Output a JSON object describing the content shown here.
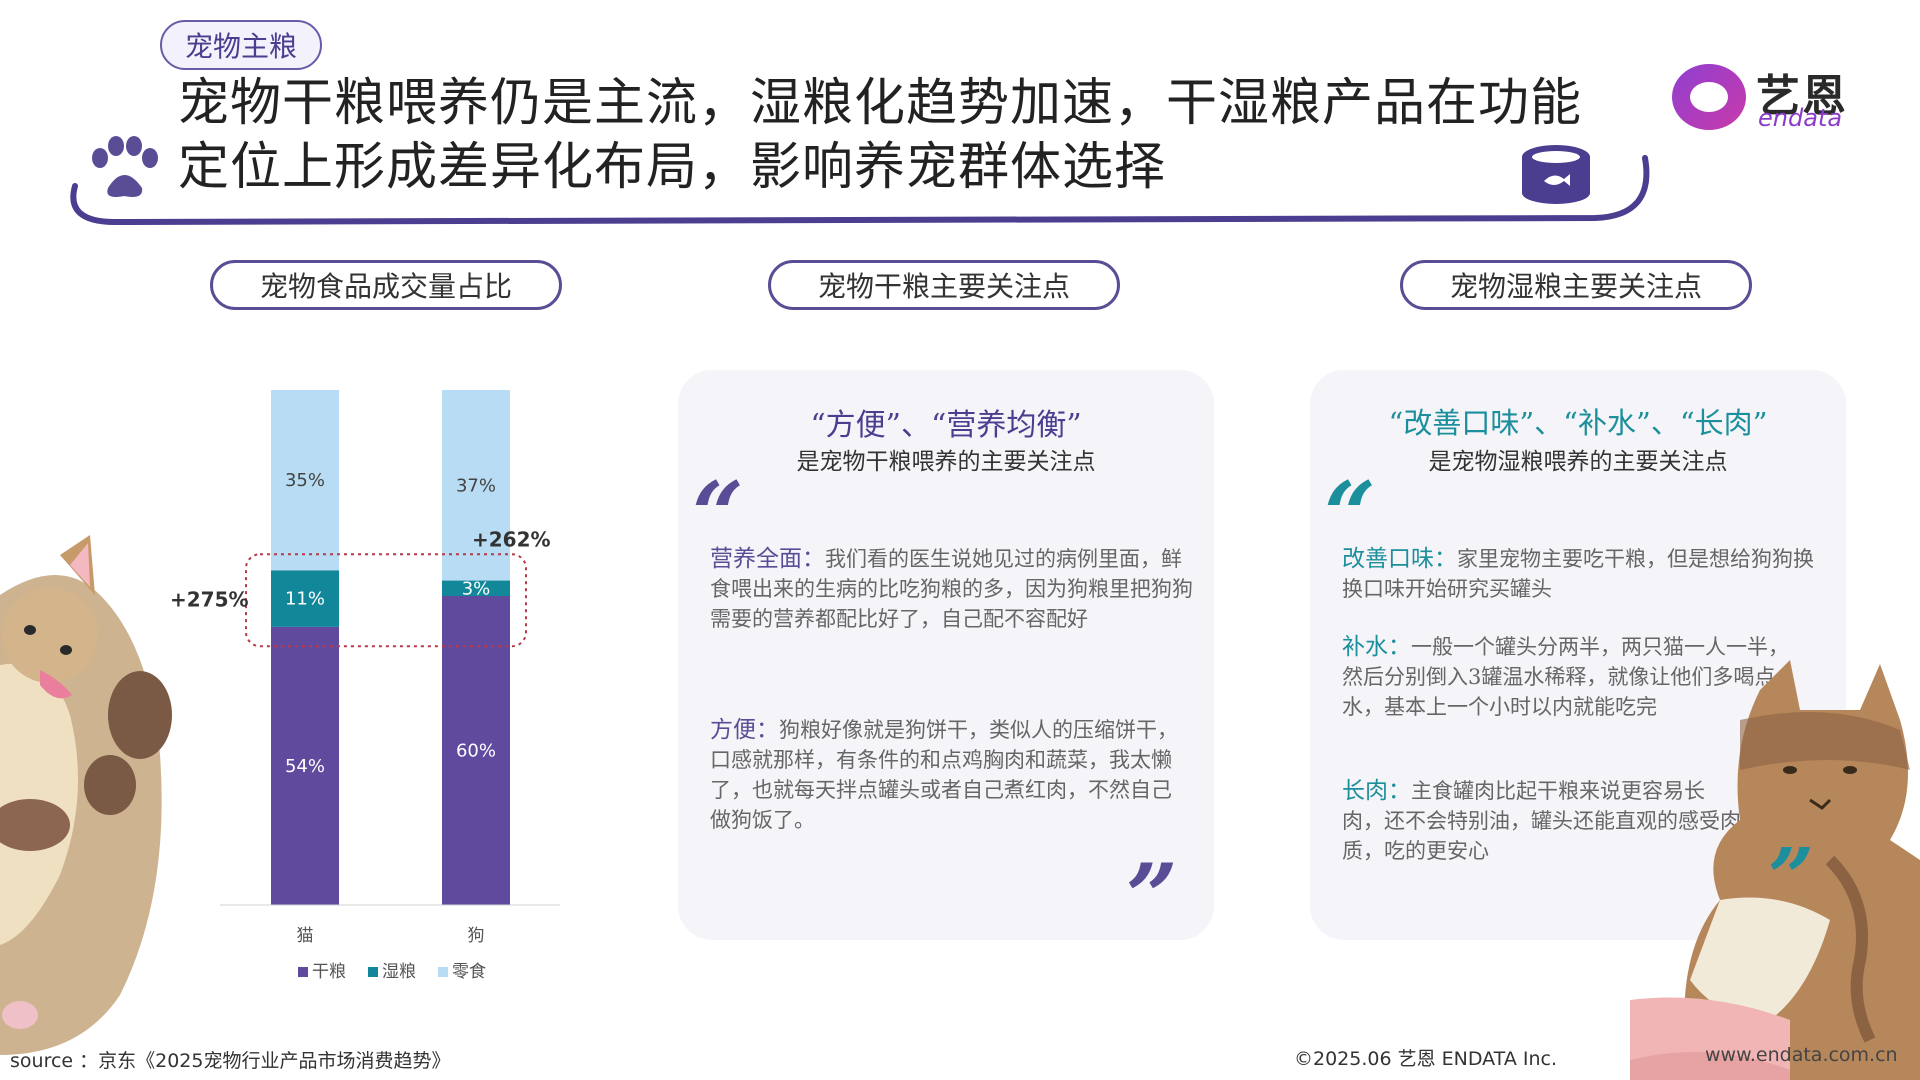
{
  "section_tag": "宠物主粮",
  "headline": {
    "line1": "宠物干粮喂养仍是主流，湿粮化趋势加速，干湿粮产品在功能",
    "line2": "定位上形成差异化布局，影响养宠群体选择"
  },
  "logo": {
    "cn": "艺恩",
    "en": "endata"
  },
  "colors": {
    "dry": "#5f4a9e",
    "wet": "#12879a",
    "snack": "#b8dcf3",
    "accent": "#5a4d96",
    "wet_accent": "#1c8f9d",
    "highlight_box": "#b83a4a"
  },
  "pills": {
    "chart": "宠物食品成交量占比",
    "dry": "宠物干粮主要关注点",
    "wet": "宠物湿粮主要关注点"
  },
  "chart_data": {
    "type": "bar",
    "stacked": true,
    "categories": [
      "猫",
      "狗"
    ],
    "series": [
      {
        "name": "干粮",
        "values": [
          54,
          60
        ],
        "labels": [
          "54%",
          "60%"
        ]
      },
      {
        "name": "湿粮",
        "values": [
          11,
          3
        ],
        "labels": [
          "11%",
          "3%"
        ]
      },
      {
        "name": "零食",
        "values": [
          35,
          37
        ],
        "labels": [
          "35%",
          "37%"
        ]
      }
    ],
    "annotations": [
      "+275%",
      "+262%"
    ],
    "ylim": [
      0,
      100
    ],
    "legend_position": "bottom",
    "grid": false
  },
  "dry_card": {
    "headline": "“方便”、“营养均衡”",
    "sub": "是宠物干粮喂养的主要关注点",
    "open_quote": "“",
    "close_quote": "”",
    "items": [
      {
        "keyword": "营养全面：",
        "text": "我们看的医生说她见过的病例里面，鲜食喂出来的生病的比吃狗粮的多，因为狗粮里把狗狗需要的营养都配比好了，自己配不容配好"
      },
      {
        "keyword": "方便：",
        "text": "狗粮好像就是狗饼干，类似人的压缩饼干，口感就那样，有条件的和点鸡胸肉和蔬菜，我太懒了，也就每天拌点罐头或者自己煮红肉，不然自己做狗饭了。"
      }
    ]
  },
  "wet_card": {
    "headline": "“改善口味”、“补水”、“长肉”",
    "sub": "是宠物湿粮喂养的主要关注点",
    "open_quote": "“",
    "close_quote": "”",
    "items": [
      {
        "keyword": "改善口味：",
        "text": "家里宠物主要吃干粮，但是想给狗狗换换口味开始研究买罐头"
      },
      {
        "keyword": "补水：",
        "text": "一般一个罐头分两半，两只猫一人一半，然后分别倒入3罐温水稀释，就像让他们多喝点水，基本上一个小时以内就能吃完"
      },
      {
        "keyword": "长肉：",
        "text": "主食罐肉比起干粮来说更容易长肉，还不会特别油，罐头还能直观的感受肉质，吃的更安心"
      }
    ]
  },
  "footer": {
    "source": "source ：京东《2025宠物行业产品市场消费趋势》",
    "copyright": "©2025.06 艺恩 ENDATA Inc.",
    "website": "www.endata.com.cn"
  }
}
